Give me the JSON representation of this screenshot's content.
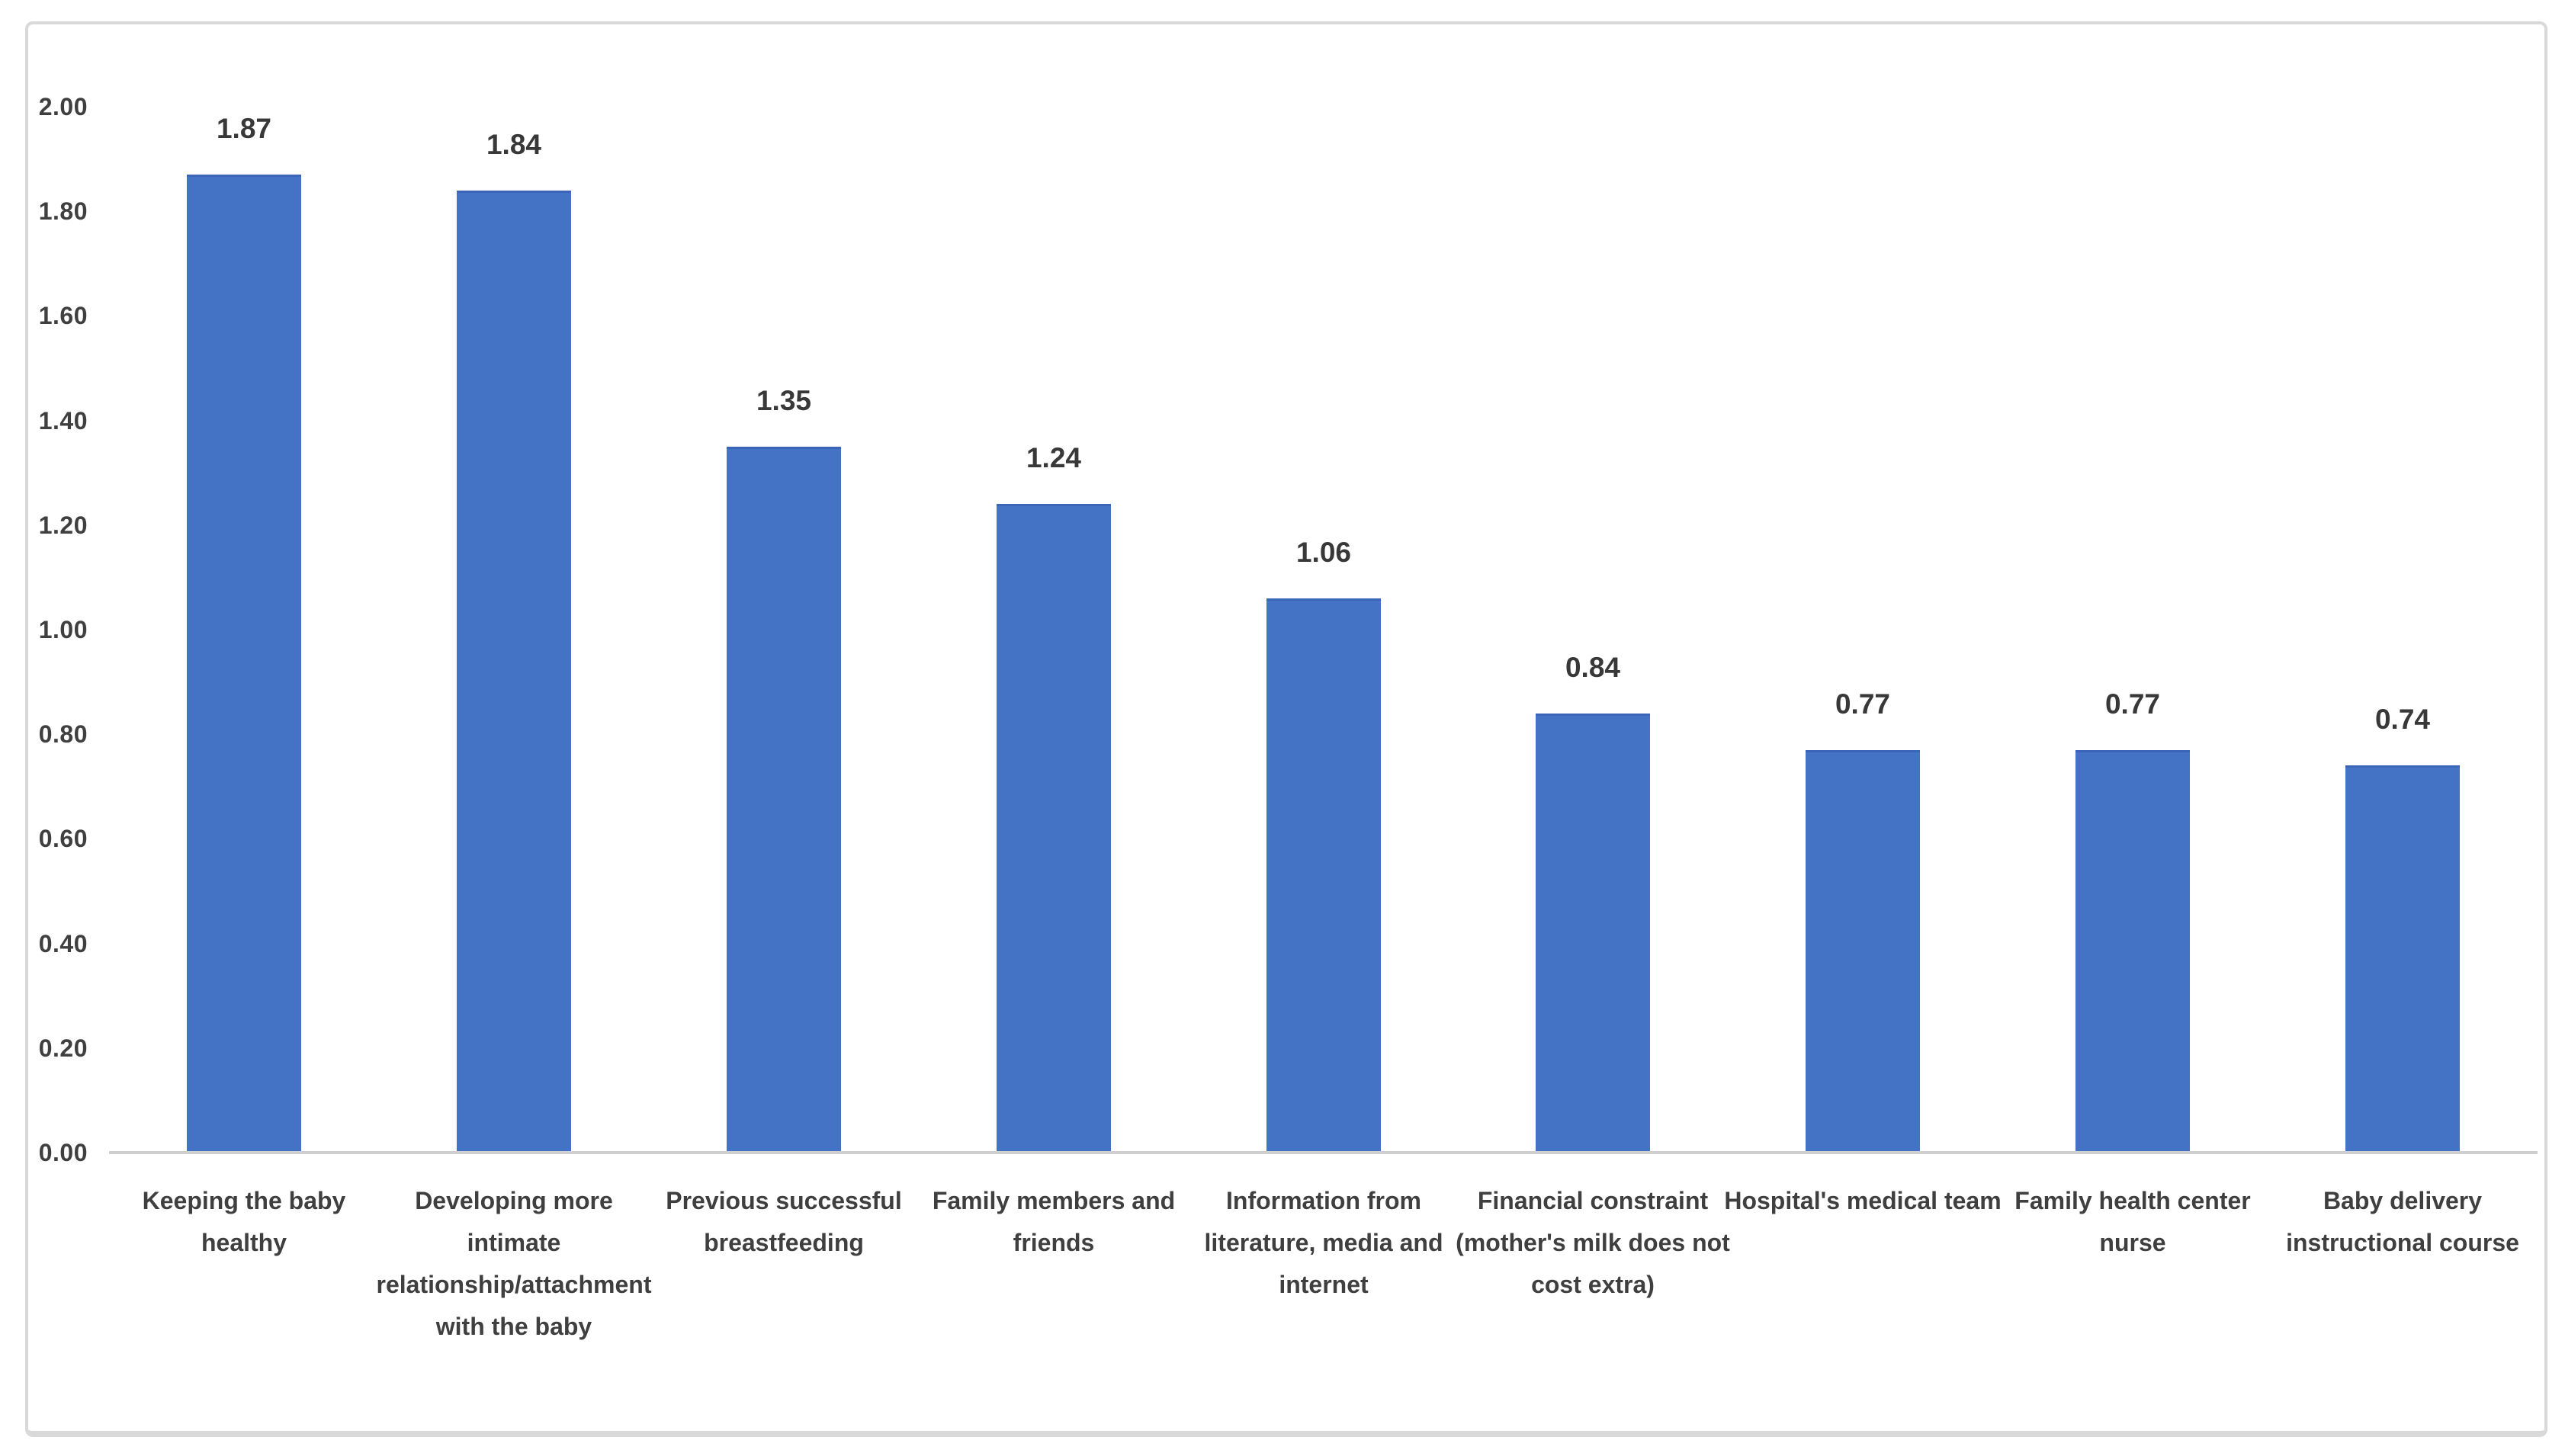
{
  "chart_data": {
    "type": "bar",
    "title": "",
    "xlabel": "",
    "ylabel": "",
    "categories": [
      "Keeping the baby healthy",
      "Developing more intimate relationship/attachment with the baby",
      "Previous successful breastfeeding",
      "Family members and friends",
      "Information from literature, media and internet",
      "Financial constraint (mother's milk does not cost extra)",
      "Hospital's medical team",
      "Family health center nurse",
      "Baby delivery instructional course"
    ],
    "category_lines": [
      [
        "Keeping the baby",
        "healthy"
      ],
      [
        "Developing more",
        "intimate",
        "relationship/attachment",
        "with the baby"
      ],
      [
        "Previous successful",
        "breastfeeding"
      ],
      [
        "Family members and",
        "friends"
      ],
      [
        "Information from",
        "literature, media and",
        "internet"
      ],
      [
        "Financial constraint",
        "(mother's milk does not",
        "cost extra)"
      ],
      [
        "Hospital's medical team"
      ],
      [
        "Family health center",
        "nurse"
      ],
      [
        "Baby delivery",
        "instructional course"
      ]
    ],
    "values": [
      1.87,
      1.84,
      1.35,
      1.24,
      1.06,
      0.84,
      0.77,
      0.77,
      0.74
    ],
    "value_labels": [
      "1.87",
      "1.84",
      "1.35",
      "1.24",
      "1.06",
      "0.84",
      "0.77",
      "0.77",
      "0.74"
    ],
    "ylim": [
      0.0,
      2.0
    ],
    "ytick_step": 0.2,
    "yticks": [
      "2.00",
      "1.80",
      "1.60",
      "1.40",
      "1.20",
      "1.00",
      "0.80",
      "0.60",
      "0.40",
      "0.20",
      "0.00"
    ],
    "grid": "off",
    "legend": "none",
    "bar_color": "#4473C6"
  },
  "colors": {
    "background": "#FFFFFF",
    "frame_border": "#D9D9D9",
    "axis_line": "#CFCFCF",
    "tick_text": "#3F3F3F",
    "value_text": "#383838",
    "category_text": "#3F3F3F",
    "bar_fill": "#4473C6",
    "bar_top_edge": "#3B66B8"
  }
}
